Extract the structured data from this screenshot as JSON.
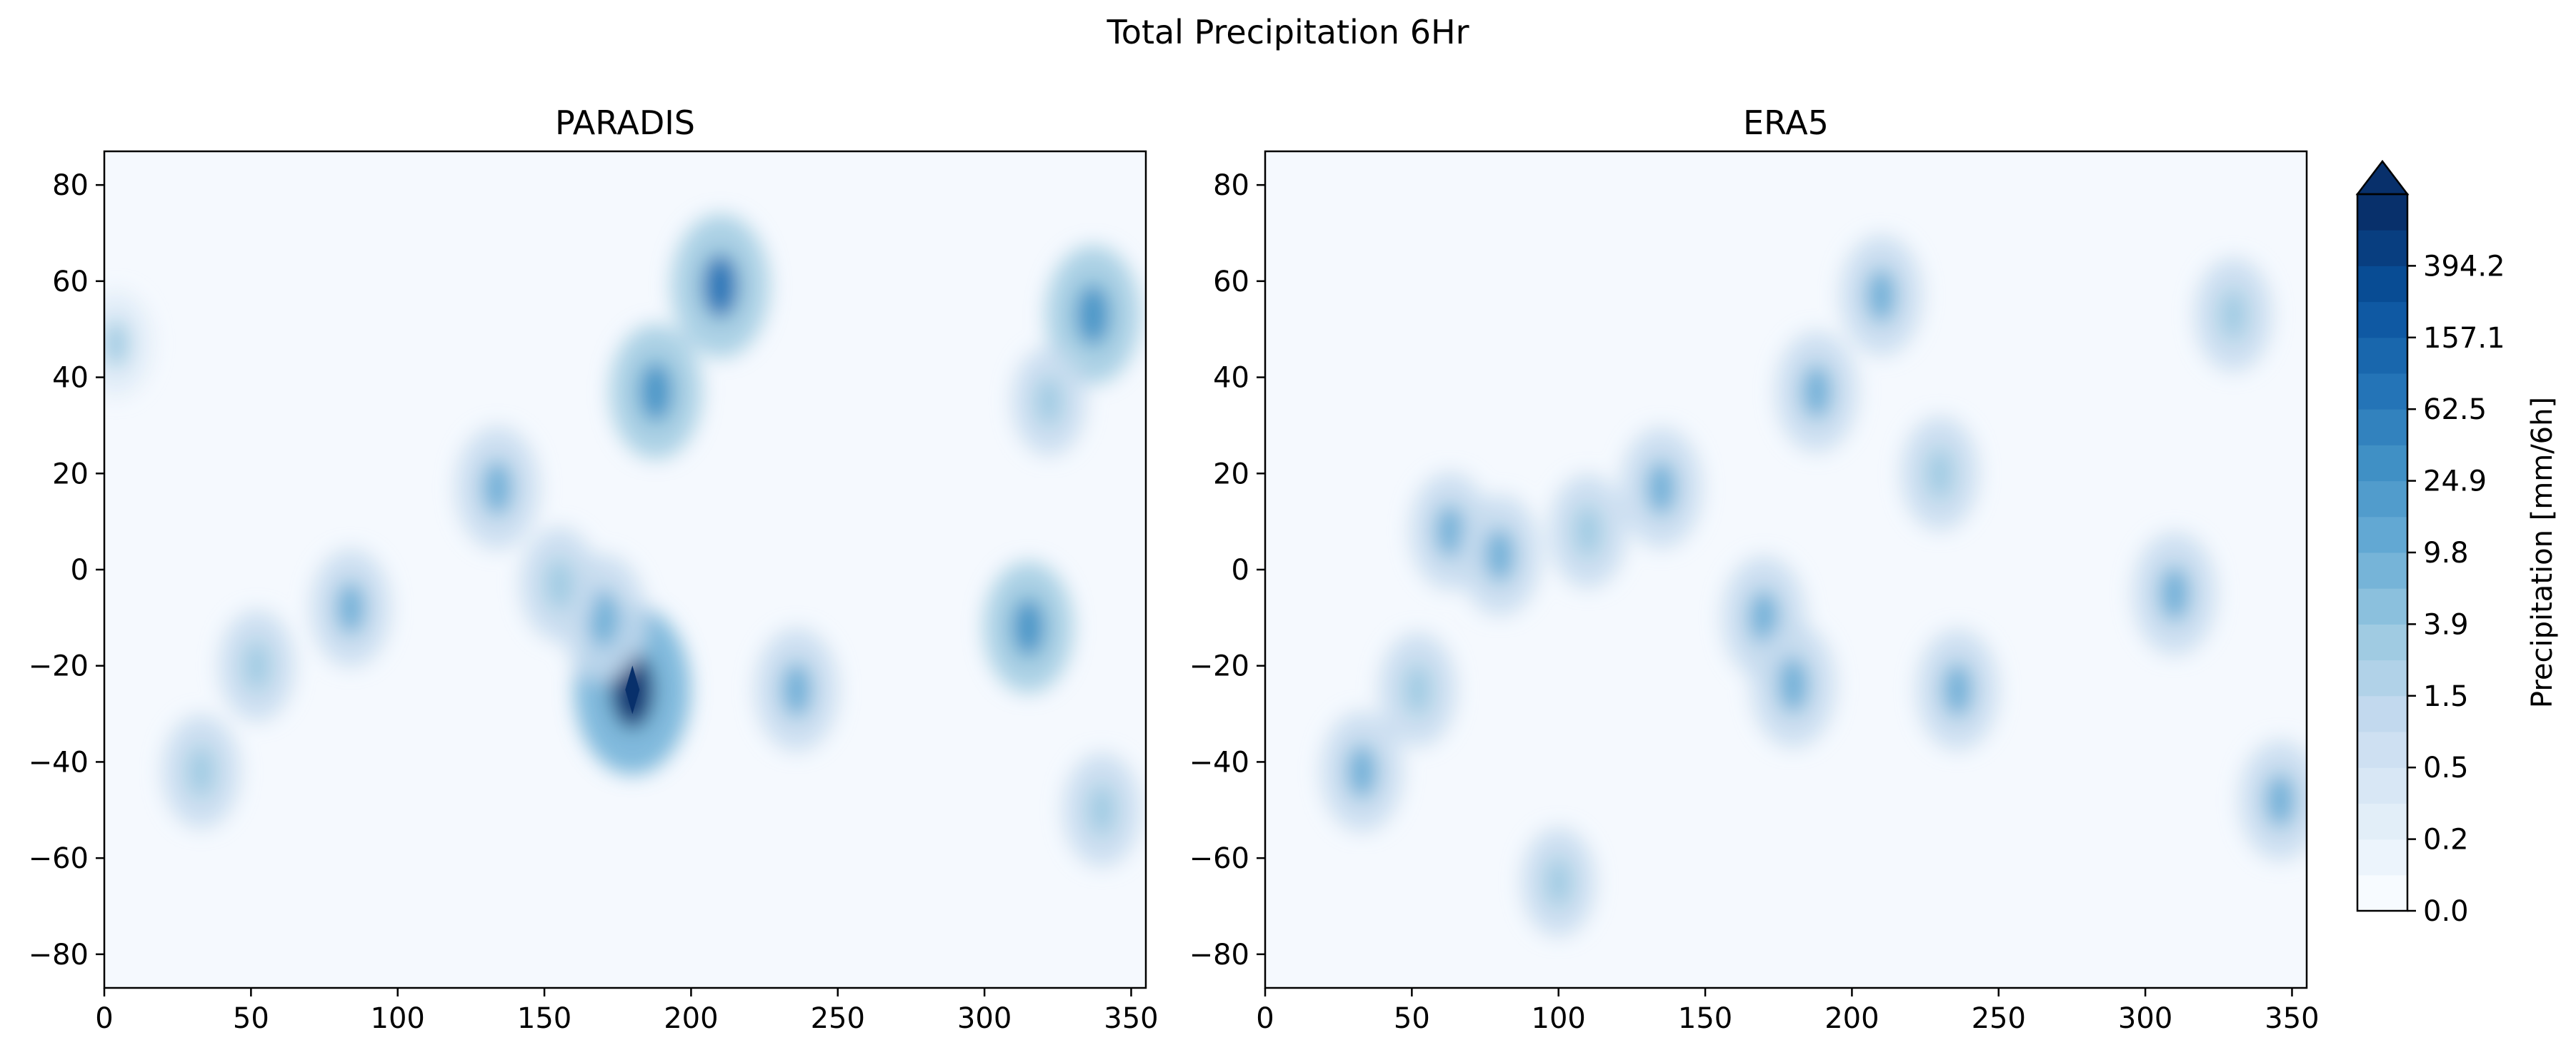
{
  "figure": {
    "title": "Total Precipitation 6Hr"
  },
  "colors": {
    "cmap": [
      "#f7fbff",
      "#deebf7",
      "#c6dbef",
      "#9ecae1",
      "#6baed6",
      "#4292c6",
      "#2171b5",
      "#08519c",
      "#08306b"
    ],
    "background": "#ffffff",
    "axes": "#000000"
  },
  "chart_data": [
    {
      "type": "heatmap",
      "title": "PARADIS",
      "xlabel": "",
      "ylabel": "",
      "xlim": [
        0,
        355
      ],
      "ylim": [
        -87,
        87
      ],
      "xticks": [
        0,
        50,
        100,
        150,
        200,
        250,
        300,
        350
      ],
      "yticks": [
        -80,
        -60,
        -40,
        -20,
        0,
        20,
        40,
        60,
        80
      ],
      "value_units": "mm/6h",
      "grid": false,
      "features": [
        {
          "x": 180,
          "y": -25,
          "value": 900
        },
        {
          "x": 210,
          "y": 59,
          "value": 130
        },
        {
          "x": 188,
          "y": 37,
          "value": 70
        },
        {
          "x": 337,
          "y": 53,
          "value": 90
        },
        {
          "x": 315,
          "y": -12,
          "value": 55
        },
        {
          "x": 170,
          "y": -10,
          "value": 40
        },
        {
          "x": 134,
          "y": 17,
          "value": 30
        },
        {
          "x": 236,
          "y": -25,
          "value": 30
        },
        {
          "x": 84,
          "y": -8,
          "value": 20
        },
        {
          "x": 33,
          "y": -42,
          "value": 15
        },
        {
          "x": 52,
          "y": -20,
          "value": 12
        },
        {
          "x": 340,
          "y": -50,
          "value": 15
        },
        {
          "x": 322,
          "y": 35,
          "value": 10
        },
        {
          "x": 155,
          "y": -3,
          "value": 15
        },
        {
          "x": 4,
          "y": 47,
          "value": 8
        }
      ]
    },
    {
      "type": "heatmap",
      "title": "ERA5",
      "xlabel": "",
      "ylabel": "",
      "xlim": [
        0,
        355
      ],
      "ylim": [
        -87,
        87
      ],
      "xticks": [
        0,
        50,
        100,
        150,
        200,
        250,
        300,
        350
      ],
      "yticks": [
        -80,
        -60,
        -40,
        -20,
        0,
        20,
        40,
        60,
        80
      ],
      "value_units": "mm/6h",
      "grid": false,
      "features": [
        {
          "x": 210,
          "y": 57,
          "value": 25
        },
        {
          "x": 188,
          "y": 37,
          "value": 25
        },
        {
          "x": 135,
          "y": 17,
          "value": 25
        },
        {
          "x": 230,
          "y": 20,
          "value": 15
        },
        {
          "x": 63,
          "y": 8,
          "value": 20
        },
        {
          "x": 80,
          "y": 3,
          "value": 25
        },
        {
          "x": 110,
          "y": 8,
          "value": 15
        },
        {
          "x": 170,
          "y": -10,
          "value": 30
        },
        {
          "x": 180,
          "y": -24,
          "value": 35
        },
        {
          "x": 236,
          "y": -25,
          "value": 25
        },
        {
          "x": 310,
          "y": -5,
          "value": 30
        },
        {
          "x": 346,
          "y": -48,
          "value": 25
        },
        {
          "x": 33,
          "y": -42,
          "value": 25
        },
        {
          "x": 52,
          "y": -25,
          "value": 15
        },
        {
          "x": 330,
          "y": 53,
          "value": 15
        },
        {
          "x": 100,
          "y": -65,
          "value": 10
        }
      ]
    }
  ],
  "colorbar": {
    "label": "Precipitation [mm/6h]",
    "tick_labels": [
      "0.0",
      "0.2",
      "0.5",
      "1.5",
      "3.9",
      "9.8",
      "24.9",
      "62.5",
      "157.1",
      "394.2"
    ],
    "extend": "max",
    "levels": 20
  }
}
